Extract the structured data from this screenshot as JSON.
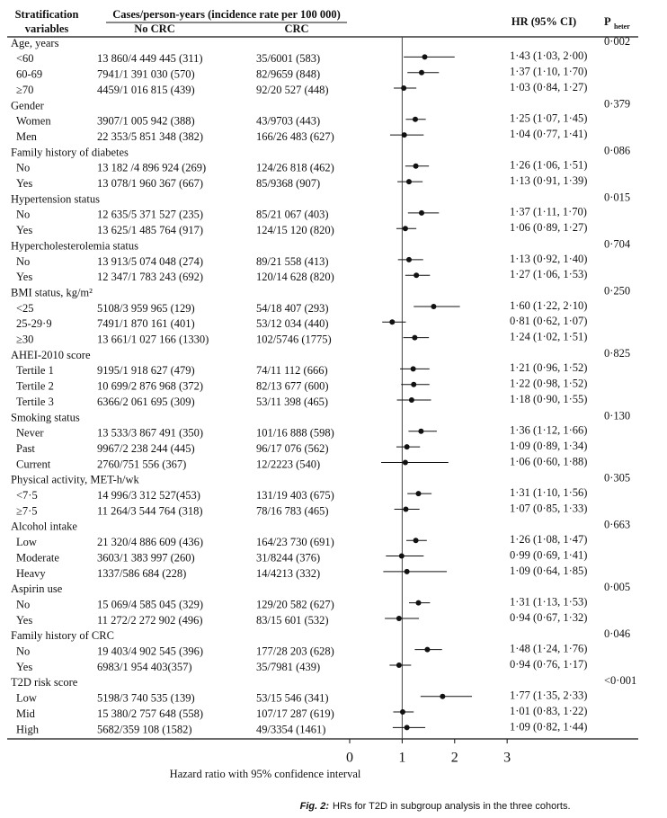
{
  "chart_data": {
    "type": "forest",
    "headers": {
      "variables_1": "Stratification",
      "variables_2": "variables",
      "cases": "Cases/person-years (incidence rate per 100 000)",
      "no_crc": "No CRC",
      "crc": "CRC",
      "hr": "HR (95% CI)",
      "p": "P",
      "p_sub": "heter"
    },
    "groups": [
      {
        "name": "Age, years",
        "p_heter": "0·002",
        "rows": [
          {
            "label": "<60",
            "no_crc": "13 860/4 449 445 (311)",
            "crc": "35/6001 (583)",
            "hr": 1.43,
            "lower": 1.03,
            "upper": 2.0,
            "hr_label": "1·43 (1·03, 2·00)"
          },
          {
            "label": "60-69",
            "no_crc": "7941/1 391 030 (570)",
            "crc": "82/9659 (848)",
            "hr": 1.37,
            "lower": 1.1,
            "upper": 1.7,
            "hr_label": "1·37 (1·10, 1·70)"
          },
          {
            "label": "≥70",
            "no_crc": "4459/1 016 815 (439)",
            "crc": "92/20 527 (448)",
            "hr": 1.03,
            "lower": 0.84,
            "upper": 1.27,
            "hr_label": "1·03 (0·84, 1·27)"
          }
        ]
      },
      {
        "name": "Gender",
        "p_heter": "0·379",
        "rows": [
          {
            "label": "Women",
            "no_crc": "3907/1 005 942 (388)",
            "crc": "43/9703 (443)",
            "hr": 1.25,
            "lower": 1.07,
            "upper": 1.45,
            "hr_label": "1·25 (1·07, 1·45)"
          },
          {
            "label": "Men",
            "no_crc": "22 353/5 851 348 (382)",
            "crc": "166/26 483 (627)",
            "hr": 1.04,
            "lower": 0.77,
            "upper": 1.41,
            "hr_label": "1·04 (0·77, 1·41)"
          }
        ]
      },
      {
        "name": "Family history of diabetes",
        "p_heter": "0·086",
        "rows": [
          {
            "label": "No",
            "no_crc": "13 182 /4 896 924 (269)",
            "crc": "124/26 818 (462)",
            "hr": 1.26,
            "lower": 1.06,
            "upper": 1.51,
            "hr_label": "1·26 (1·06, 1·51)"
          },
          {
            "label": "Yes",
            "no_crc": "13 078/1 960 367 (667)",
            "crc": "85/9368 (907)",
            "hr": 1.13,
            "lower": 0.91,
            "upper": 1.39,
            "hr_label": "1·13 (0·91, 1·39)"
          }
        ]
      },
      {
        "name": "Hypertension status",
        "p_heter": "0·015",
        "rows": [
          {
            "label": "No",
            "no_crc": "12 635/5 371 527 (235)",
            "crc": "85/21 067 (403)",
            "hr": 1.37,
            "lower": 1.11,
            "upper": 1.7,
            "hr_label": "1·37 (1·11, 1·70)"
          },
          {
            "label": "Yes",
            "no_crc": "13 625/1 485 764 (917)",
            "crc": "124/15 120 (820)",
            "hr": 1.06,
            "lower": 0.89,
            "upper": 1.27,
            "hr_label": "1·06 (0·89, 1·27)"
          }
        ]
      },
      {
        "name": "Hypercholesterolemia status",
        "p_heter": "0·704",
        "rows": [
          {
            "label": "No",
            "no_crc": "13 913/5 074 048 (274)",
            "crc": "89/21 558 (413)",
            "hr": 1.13,
            "lower": 0.92,
            "upper": 1.4,
            "hr_label": "1·13 (0·92, 1·40)"
          },
          {
            "label": "Yes",
            "no_crc": "12 347/1 783 243 (692)",
            "crc": "120/14 628 (820)",
            "hr": 1.27,
            "lower": 1.06,
            "upper": 1.53,
            "hr_label": "1·27 (1·06, 1·53)"
          }
        ]
      },
      {
        "name": "BMI status, kg/m²",
        "p_heter": "0·250",
        "rows": [
          {
            "label": "<25",
            "no_crc": "5108/3 959 965 (129)",
            "crc": "54/18 407 (293)",
            "hr": 1.6,
            "lower": 1.22,
            "upper": 2.1,
            "hr_label": "1·60 (1·22, 2·10)"
          },
          {
            "label": "25-29·9",
            "no_crc": "7491/1 870 161 (401)",
            "crc": "53/12 034 (440)",
            "hr": 0.81,
            "lower": 0.62,
            "upper": 1.07,
            "hr_label": "0·81 (0·62, 1·07)"
          },
          {
            "label": "≥30",
            "no_crc": "13 661/1 027 166 (1330)",
            "crc": "102/5746 (1775)",
            "hr": 1.24,
            "lower": 1.02,
            "upper": 1.51,
            "hr_label": "1·24 (1·02, 1·51)"
          }
        ]
      },
      {
        "name": "AHEI-2010 score",
        "p_heter": "0·825",
        "rows": [
          {
            "label": "Tertile 1",
            "no_crc": "9195/1 918 627 (479)",
            "crc": "74/11 112 (666)",
            "hr": 1.21,
            "lower": 0.96,
            "upper": 1.52,
            "hr_label": "1·21 (0·96, 1·52)"
          },
          {
            "label": "Tertile 2",
            "no_crc": "10 699/2 876 968 (372)",
            "crc": "82/13 677 (600)",
            "hr": 1.22,
            "lower": 0.98,
            "upper": 1.52,
            "hr_label": "1·22 (0·98, 1·52)"
          },
          {
            "label": "Tertile 3",
            "no_crc": "6366/2 061 695 (309)",
            "crc": "53/11 398 (465)",
            "hr": 1.18,
            "lower": 0.9,
            "upper": 1.55,
            "hr_label": "1·18 (0·90, 1·55)"
          }
        ]
      },
      {
        "name": "Smoking status",
        "p_heter": "0·130",
        "rows": [
          {
            "label": "Never",
            "no_crc": "13 533/3 867 491 (350)",
            "crc": "101/16 888 (598)",
            "hr": 1.36,
            "lower": 1.12,
            "upper": 1.66,
            "hr_label": "1·36 (1·12, 1·66)"
          },
          {
            "label": "Past",
            "no_crc": "9967/2 238 244 (445)",
            "crc": "96/17 076 (562)",
            "hr": 1.09,
            "lower": 0.89,
            "upper": 1.34,
            "hr_label": "1·09 (0·89, 1·34)"
          },
          {
            "label": "Current",
            "no_crc": "2760/751 556 (367)",
            "crc": "12/2223 (540)",
            "hr": 1.06,
            "lower": 0.6,
            "upper": 1.88,
            "hr_label": "1·06 (0·60, 1·88)"
          }
        ]
      },
      {
        "name": "Physical activity, MET-h/wk",
        "p_heter": "0·305",
        "rows": [
          {
            "label": "<7·5",
            "no_crc": "14 996/3 312 527(453)",
            "crc": "131/19 403 (675)",
            "hr": 1.31,
            "lower": 1.1,
            "upper": 1.56,
            "hr_label": "1·31 (1·10, 1·56)"
          },
          {
            "label": "≥7·5",
            "no_crc": "11 264/3 544 764 (318)",
            "crc": "78/16 783 (465)",
            "hr": 1.07,
            "lower": 0.85,
            "upper": 1.33,
            "hr_label": "1·07 (0·85, 1·33)"
          }
        ]
      },
      {
        "name": "Alcohol intake",
        "p_heter": "0·663",
        "rows": [
          {
            "label": "Low",
            "no_crc": "21 320/4 886 609 (436)",
            "crc": "164/23 730 (691)",
            "hr": 1.26,
            "lower": 1.08,
            "upper": 1.47,
            "hr_label": "1·26 (1·08, 1·47)"
          },
          {
            "label": "Moderate",
            "no_crc": "3603/1 383 997 (260)",
            "crc": "31/8244 (376)",
            "hr": 0.99,
            "lower": 0.69,
            "upper": 1.41,
            "hr_label": "0·99 (0·69, 1·41)"
          },
          {
            "label": "Heavy",
            "no_crc": "1337/586 684 (228)",
            "crc": "14/4213 (332)",
            "hr": 1.09,
            "lower": 0.64,
            "upper": 1.85,
            "hr_label": "1·09 (0·64, 1·85)"
          }
        ]
      },
      {
        "name": "Aspirin use",
        "p_heter": "0·005",
        "rows": [
          {
            "label": "No",
            "no_crc": "15 069/4 585 045 (329)",
            "crc": "129/20 582 (627)",
            "hr": 1.31,
            "lower": 1.13,
            "upper": 1.53,
            "hr_label": "1·31 (1·13, 1·53)"
          },
          {
            "label": "Yes",
            "no_crc": "11 272/2 272 902 (496)",
            "crc": "83/15 601 (532)",
            "hr": 0.94,
            "lower": 0.67,
            "upper": 1.32,
            "hr_label": "0·94 (0·67, 1·32)"
          }
        ]
      },
      {
        "name": "Family history of CRC",
        "p_heter": "0·046",
        "rows": [
          {
            "label": "No",
            "no_crc": "19 403/4 902 545 (396)",
            "crc": "177/28 203 (628)",
            "hr": 1.48,
            "lower": 1.24,
            "upper": 1.76,
            "hr_label": "1·48 (1·24, 1·76)"
          },
          {
            "label": "Yes",
            "no_crc": "6983/1 954 403(357)",
            "crc": "35/7981 (439)",
            "hr": 0.94,
            "lower": 0.76,
            "upper": 1.17,
            "hr_label": "0·94 (0·76, 1·17)"
          }
        ]
      },
      {
        "name": "T2D risk score",
        "p_heter": "<0·001",
        "rows": [
          {
            "label": "Low",
            "no_crc": "5198/3 740 535 (139)",
            "crc": "53/15 546 (341)",
            "hr": 1.77,
            "lower": 1.35,
            "upper": 2.33,
            "hr_label": "1·77 (1·35, 2·33)"
          },
          {
            "label": "Mid",
            "no_crc": "15 380/2 757 648 (558)",
            "crc": "107/17 287 (619)",
            "hr": 1.01,
            "lower": 0.83,
            "upper": 1.22,
            "hr_label": "1·01 (0·83, 1·22)"
          },
          {
            "label": "High",
            "no_crc": "5682/359 108 (1582)",
            "crc": "49/3354 (1461)",
            "hr": 1.09,
            "lower": 0.82,
            "upper": 1.44,
            "hr_label": "1·09 (0·82, 1·44)"
          }
        ]
      }
    ],
    "xlim": [
      -0.12,
      3.1
    ],
    "xticks": [
      0,
      1,
      2,
      3
    ],
    "ref_line": 1,
    "x_label": "Hazard ratio with 95% confidence interval",
    "caption_label": "Fig. 2:",
    "caption": "HRs for T2D in subgroup analysis in the three cohorts."
  }
}
